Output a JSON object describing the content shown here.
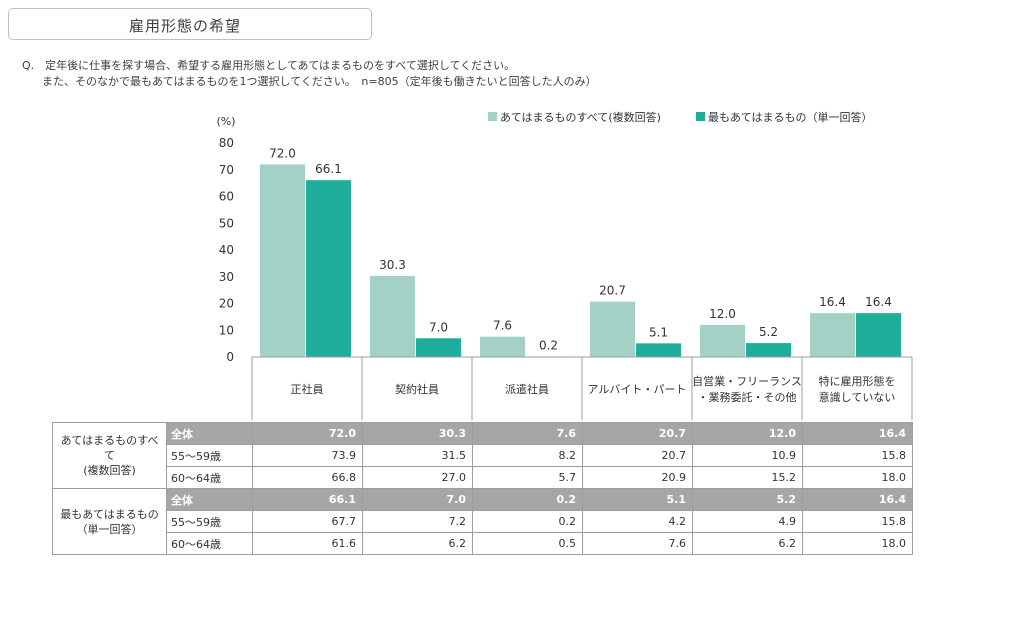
{
  "title": "雇用形態の希望",
  "question": {
    "line1": "Q.　定年後に仕事を探す場合、希望する雇用形態としてあてはまるものをすべて選択してください。",
    "line2": "また、そのなかで最もあてはまるものを1つ選択してください。　n=805（定年後も働きたいと回答した人のみ）"
  },
  "chart_data": {
    "type": "bar",
    "unit_label": "(%)",
    "ylim": [
      0,
      80
    ],
    "yticks": [
      0,
      10,
      20,
      30,
      40,
      50,
      60,
      70,
      80
    ],
    "grid": false,
    "legend_position": "top-right",
    "categories": [
      "正社員",
      "契約社員",
      "派遣社員",
      "アルバイト・パート",
      "自営業・フリーランス\n・業務委託・その他",
      "特に雇用形態を\n意識していない"
    ],
    "series": [
      {
        "name": "あてはまるものすべて(複数回答)",
        "color": "#a3d1c6",
        "values": [
          72.0,
          30.3,
          7.6,
          20.7,
          12.0,
          16.4
        ]
      },
      {
        "name": "最もあてはまるもの（単一回答）",
        "color": "#1fae9b",
        "values": [
          66.1,
          7.0,
          0.2,
          5.1,
          5.2,
          16.4
        ]
      }
    ]
  },
  "table": {
    "groups": [
      {
        "label": "あてはまるものすべて\n(複数回答)",
        "rows": [
          {
            "label": "全体",
            "values": [
              "72.0",
              "30.3",
              "7.6",
              "20.7",
              "12.0",
              "16.4"
            ]
          },
          {
            "label": "55～59歳",
            "values": [
              "73.9",
              "31.5",
              "8.2",
              "20.7",
              "10.9",
              "15.8"
            ]
          },
          {
            "label": "60～64歳",
            "values": [
              "66.8",
              "27.0",
              "5.7",
              "20.9",
              "15.2",
              "18.0"
            ]
          }
        ]
      },
      {
        "label": "最もあてはまるもの\n（単一回答）",
        "rows": [
          {
            "label": "全体",
            "values": [
              "66.1",
              "7.0",
              "0.2",
              "5.1",
              "5.2",
              "16.4"
            ]
          },
          {
            "label": "55～59歳",
            "values": [
              "67.7",
              "7.2",
              "0.2",
              "4.2",
              "4.9",
              "15.8"
            ]
          },
          {
            "label": "60～64歳",
            "values": [
              "61.6",
              "6.2",
              "0.5",
              "7.6",
              "6.2",
              "18.0"
            ]
          }
        ]
      }
    ]
  }
}
